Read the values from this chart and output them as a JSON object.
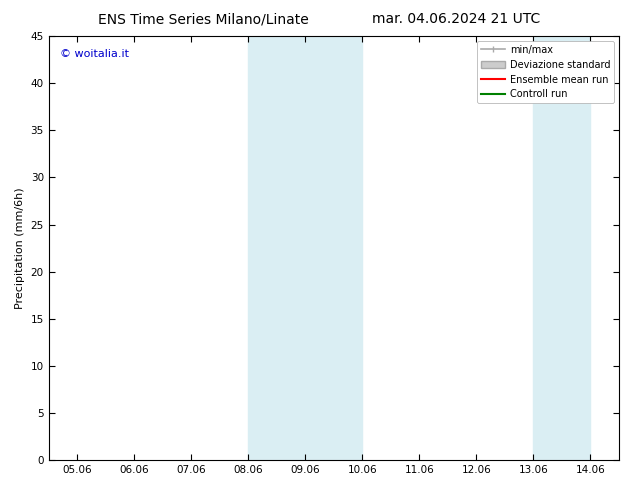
{
  "title_left": "ENS Time Series Milano/Linate",
  "title_right": "mar. 04.06.2024 21 UTC",
  "ylabel": "Precipitation (mm/6h)",
  "watermark": "© woitalia.it",
  "ylim": [
    0,
    45
  ],
  "yticks": [
    0,
    5,
    10,
    15,
    20,
    25,
    30,
    35,
    40,
    45
  ],
  "xtick_labels": [
    "05.06",
    "06.06",
    "07.06",
    "08.06",
    "09.06",
    "10.06",
    "11.06",
    "12.06",
    "13.06",
    "14.06"
  ],
  "xlim_min": 0,
  "xlim_max": 9,
  "shade_regions": [
    {
      "xmin": 3.0,
      "xmax": 4.0
    },
    {
      "xmin": 4.0,
      "xmax": 5.0
    },
    {
      "xmin": 8.0,
      "xmax": 9.0
    }
  ],
  "shade_color": "#daeef3",
  "background_color": "#ffffff",
  "legend_labels": [
    "min/max",
    "Deviazione standard",
    "Ensemble mean run",
    "Controll run"
  ],
  "legend_line_color": "#aaaaaa",
  "legend_patch_color": "#cccccc",
  "legend_red": "#ff0000",
  "legend_green": "#008000",
  "title_fontsize": 10,
  "axis_fontsize": 8,
  "tick_fontsize": 7.5,
  "watermark_color": "#0000cc",
  "spine_color": "#000000"
}
